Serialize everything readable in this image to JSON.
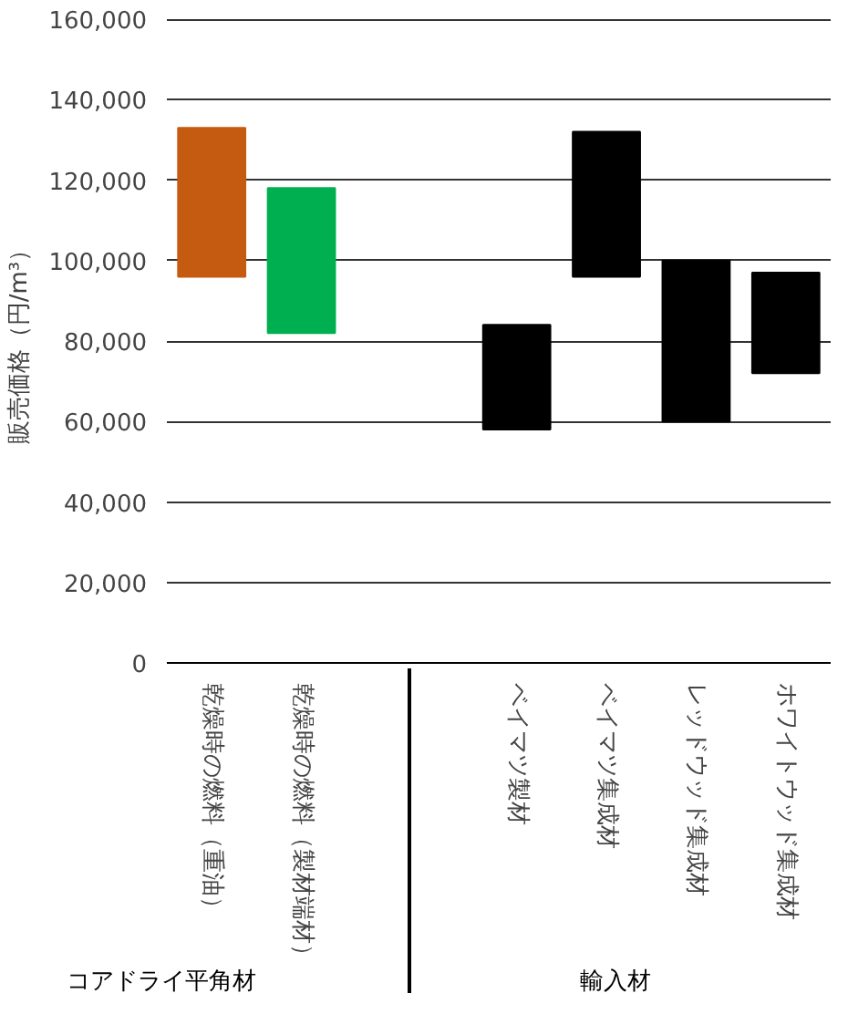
{
  "chart_data": {
    "type": "bar",
    "ylabel": "販売価格（円/m³）",
    "categories": [
      "乾燥時の燃料（重油）",
      "乾燥時の燃料（製材端材）",
      "ベイマツ製材",
      "ベイマツ集成材",
      "レッドウッド集成材",
      "ホワイトウッド集成材"
    ],
    "base": [
      96000,
      82000,
      58000,
      96000,
      60000,
      72000
    ],
    "values": [
      37000,
      36000,
      26000,
      36000,
      40000,
      25000
    ],
    "colors": [
      "#c55a11",
      "#00b050",
      "#000000",
      "#000000",
      "#000000",
      "#000000"
    ],
    "ylim": [
      0,
      160000
    ],
    "yticks": [
      {
        "value": 0,
        "label": "0"
      },
      {
        "value": 20000,
        "label": "20,000"
      },
      {
        "value": 40000,
        "label": "40,000"
      },
      {
        "value": 60000,
        "label": "60,000"
      },
      {
        "value": 80000,
        "label": "80,000"
      },
      {
        "value": 100000,
        "label": "100,000"
      },
      {
        "value": 120000,
        "label": "120,000"
      },
      {
        "value": 140000,
        "label": "140,000"
      },
      {
        "value": 160000,
        "label": "160,000"
      }
    ],
    "grid": "y",
    "annotations": [
      "コアドライ平角材",
      "輸入材"
    ]
  }
}
